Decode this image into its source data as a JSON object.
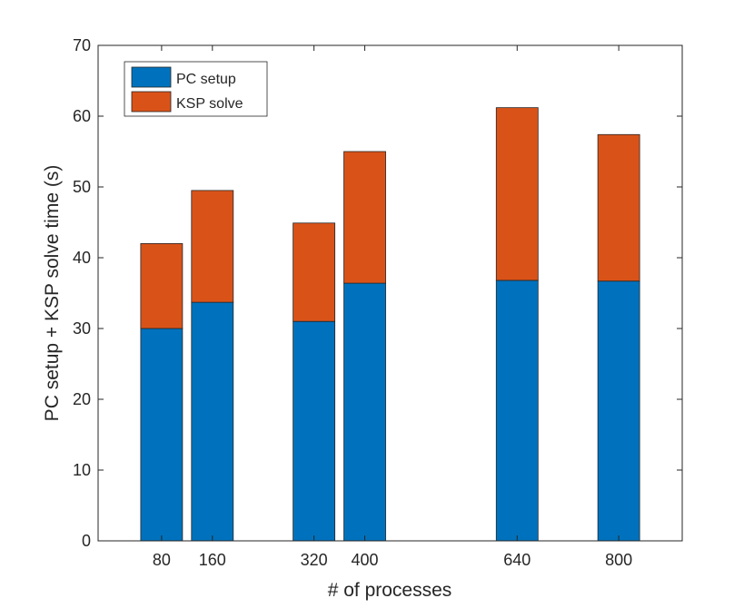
{
  "chart_data": {
    "type": "bar",
    "stacked": true,
    "title": "",
    "xlabel": "# of processes",
    "ylabel": "PC setup + KSP solve time (s)",
    "ylim": [
      0,
      70
    ],
    "yticks": [
      0,
      10,
      20,
      30,
      40,
      50,
      60,
      70
    ],
    "x": [
      80,
      160,
      320,
      400,
      640,
      800
    ],
    "xticks": [
      "80",
      "160",
      "320",
      "400",
      "640",
      "800"
    ],
    "xlim": [
      -20,
      900
    ],
    "grid": false,
    "legend_position": "top-left",
    "series": [
      {
        "name": "PC setup",
        "color": "#0072BD",
        "values": [
          30.0,
          33.7,
          31.0,
          36.4,
          36.8,
          36.7
        ]
      },
      {
        "name": "KSP solve",
        "color": "#D95319",
        "values": [
          12.0,
          15.8,
          13.9,
          18.6,
          24.4,
          20.7
        ]
      }
    ]
  }
}
